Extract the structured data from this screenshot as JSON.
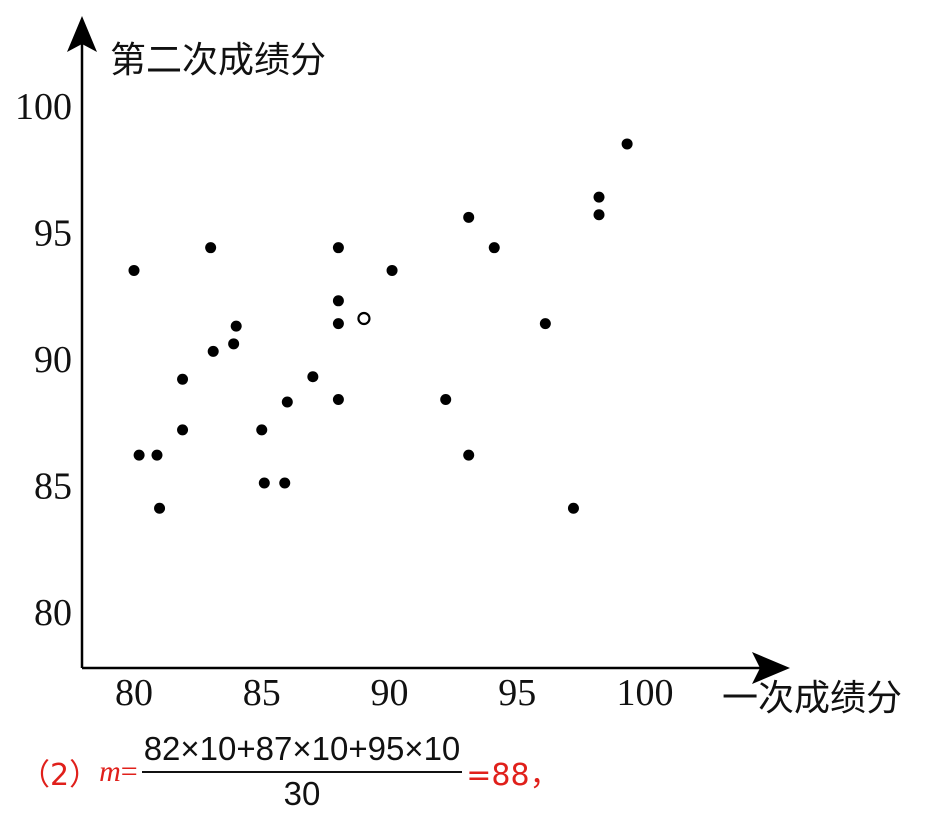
{
  "chart_data": {
    "type": "scatter",
    "xlabel": "一次成绩分",
    "ylabel": "第二次成绩分",
    "xlim": [
      78,
      100
    ],
    "ylim": [
      78,
      100
    ],
    "xticks": [
      80,
      85,
      90,
      95,
      100
    ],
    "yticks": [
      80,
      85,
      90,
      95,
      100
    ],
    "grid": false,
    "points": [
      {
        "x": 80.0,
        "y": 93.5,
        "marker": "filled"
      },
      {
        "x": 80.2,
        "y": 86.2,
        "marker": "filled"
      },
      {
        "x": 80.9,
        "y": 86.2,
        "marker": "filled"
      },
      {
        "x": 81.0,
        "y": 84.1,
        "marker": "filled"
      },
      {
        "x": 81.9,
        "y": 89.2,
        "marker": "filled"
      },
      {
        "x": 81.9,
        "y": 87.2,
        "marker": "filled"
      },
      {
        "x": 83.0,
        "y": 94.4,
        "marker": "filled"
      },
      {
        "x": 83.1,
        "y": 90.3,
        "marker": "filled"
      },
      {
        "x": 83.9,
        "y": 90.6,
        "marker": "filled"
      },
      {
        "x": 84.0,
        "y": 91.3,
        "marker": "filled"
      },
      {
        "x": 85.0,
        "y": 87.2,
        "marker": "filled"
      },
      {
        "x": 85.1,
        "y": 85.1,
        "marker": "filled"
      },
      {
        "x": 85.9,
        "y": 85.1,
        "marker": "filled"
      },
      {
        "x": 86.0,
        "y": 88.3,
        "marker": "filled"
      },
      {
        "x": 87.0,
        "y": 89.3,
        "marker": "filled"
      },
      {
        "x": 88.0,
        "y": 94.4,
        "marker": "filled"
      },
      {
        "x": 88.0,
        "y": 92.3,
        "marker": "filled"
      },
      {
        "x": 88.0,
        "y": 91.4,
        "marker": "filled"
      },
      {
        "x": 88.0,
        "y": 88.4,
        "marker": "filled"
      },
      {
        "x": 89.0,
        "y": 91.6,
        "marker": "hollow"
      },
      {
        "x": 90.1,
        "y": 93.5,
        "marker": "filled"
      },
      {
        "x": 92.2,
        "y": 88.4,
        "marker": "filled"
      },
      {
        "x": 93.1,
        "y": 95.6,
        "marker": "filled"
      },
      {
        "x": 93.1,
        "y": 86.2,
        "marker": "filled"
      },
      {
        "x": 94.1,
        "y": 94.4,
        "marker": "filled"
      },
      {
        "x": 96.1,
        "y": 91.4,
        "marker": "filled"
      },
      {
        "x": 97.2,
        "y": 84.1,
        "marker": "filled"
      },
      {
        "x": 98.2,
        "y": 96.4,
        "marker": "filled"
      },
      {
        "x": 98.2,
        "y": 95.7,
        "marker": "filled"
      },
      {
        "x": 99.3,
        "y": 98.5,
        "marker": "filled"
      }
    ],
    "colors": {
      "axis": "#000000",
      "point": "#000000",
      "answer": "#e0201b"
    }
  },
  "formula": {
    "prefix": "（2）",
    "variable": "m",
    "equals": "=",
    "numerator": "82×10+87×10+95×10",
    "denominator": "30",
    "result": "=88，"
  }
}
